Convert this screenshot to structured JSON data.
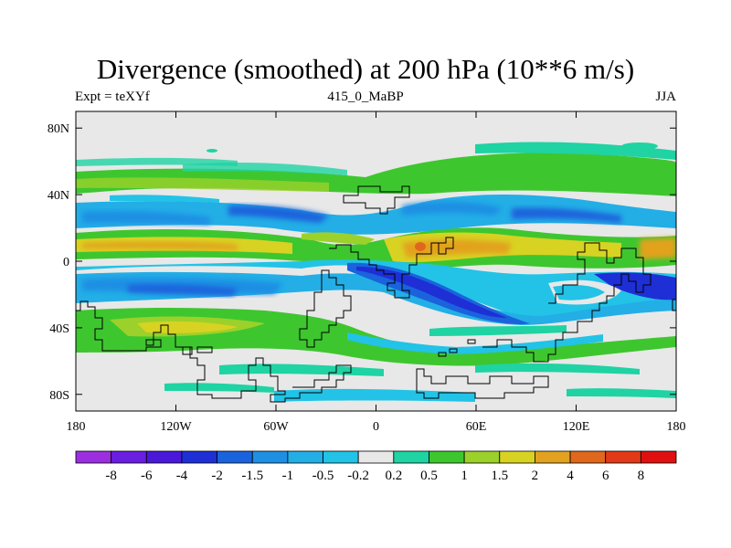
{
  "chart_data": {
    "type": "heatmap",
    "title": "Divergence (smoothed) at 200 hPa (10**6 m/s)",
    "subtitle_left": "Expt = teXYf",
    "subtitle_center": "415_0_MaBP",
    "subtitle_right": "JJA",
    "x_ticks": [
      {
        "value": -180,
        "label": "180"
      },
      {
        "value": -120,
        "label": "120W"
      },
      {
        "value": -60,
        "label": "60W"
      },
      {
        "value": 0,
        "label": "0"
      },
      {
        "value": 60,
        "label": "60E"
      },
      {
        "value": 120,
        "label": "120E"
      },
      {
        "value": 180,
        "label": "180"
      }
    ],
    "y_ticks": [
      {
        "value": 80,
        "label": "80N"
      },
      {
        "value": 40,
        "label": "40N"
      },
      {
        "value": 0,
        "label": "0"
      },
      {
        "value": -40,
        "label": "40S"
      },
      {
        "value": -80,
        "label": "80S"
      }
    ],
    "xlim": [
      -180,
      180
    ],
    "ylim": [
      -90,
      90
    ],
    "colorbar": {
      "colors": [
        "#9b2fe0",
        "#6a1ee0",
        "#4a18d8",
        "#1e2fd6",
        "#1a63dc",
        "#1f8fe4",
        "#23aee6",
        "#22c3e6",
        "#e8e8e8",
        "#1fd3a3",
        "#3ec62f",
        "#9bd12a",
        "#d8d223",
        "#e2a21f",
        "#e0681c",
        "#e23a18",
        "#e01010"
      ],
      "labels": [
        "-8",
        "-6",
        "-4",
        "-2",
        "-1.5",
        "-1",
        "-0.5",
        "-0.2",
        "0.2",
        "0.5",
        "1",
        "1.5",
        "2",
        "4",
        "6",
        "8"
      ]
    }
  }
}
